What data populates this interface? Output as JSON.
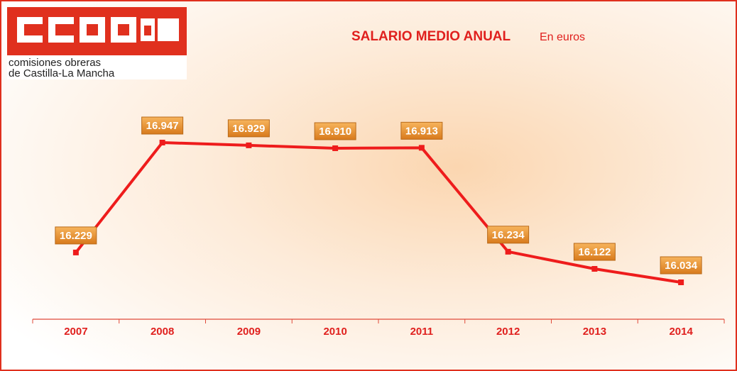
{
  "chart_data": {
    "type": "line",
    "title": "SALARIO MEDIO ANUAL",
    "subtitle": "En euros",
    "logo_lines": [
      "comisiones obreras",
      "de Castilla-La Mancha"
    ],
    "categories": [
      "2007",
      "2008",
      "2009",
      "2010",
      "2011",
      "2012",
      "2013",
      "2014"
    ],
    "series": [
      {
        "name": "Salario medio anual",
        "color": "#ee1c1c",
        "values": [
          16229,
          16947,
          16929,
          16910,
          16913,
          16234,
          16122,
          16034
        ],
        "value_labels": [
          "16.229",
          "16.947",
          "16.929",
          "16.910",
          "16.913",
          "16.234",
          "16.122",
          "16.034"
        ]
      }
    ]
  }
}
